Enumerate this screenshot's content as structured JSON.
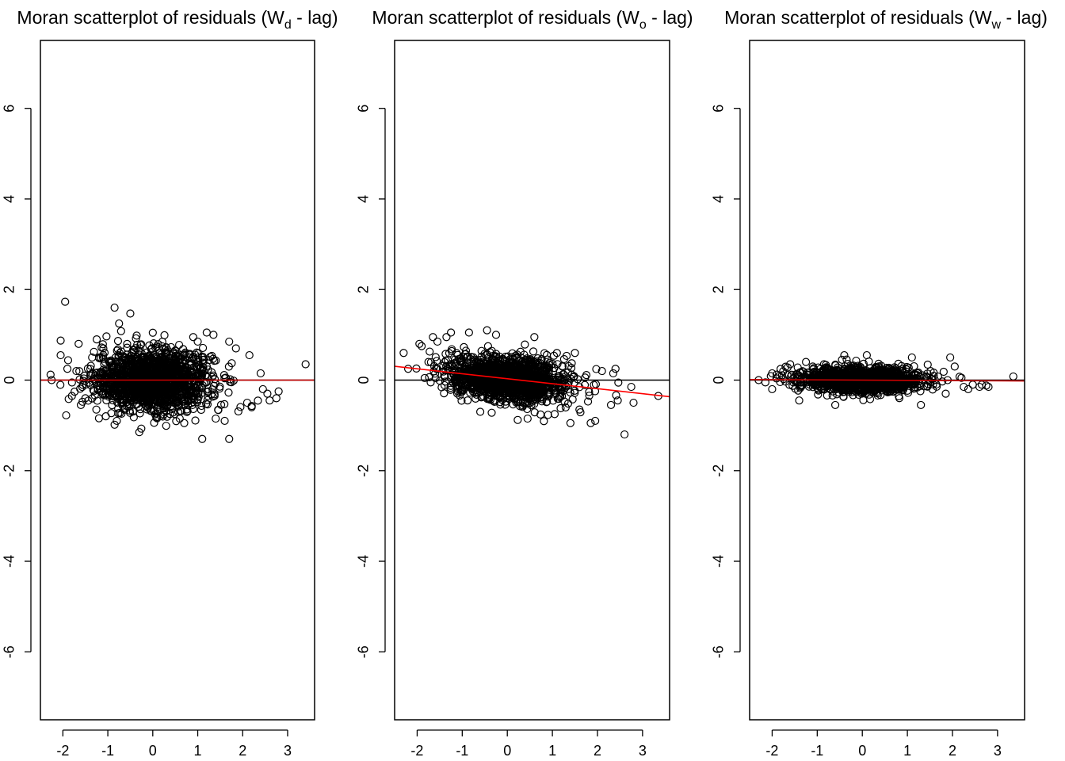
{
  "chart_data": [
    {
      "type": "scatter",
      "title": {
        "prefix": "Moran scatterplot of residuals (W",
        "subscript": "d",
        "suffix": " - lag)"
      },
      "xlim": [
        -2.5,
        3.6
      ],
      "ylim": [
        -7.5,
        7.5
      ],
      "xticks": [
        -2,
        -1,
        0,
        1,
        2,
        3
      ],
      "yticks": [
        -6,
        -4,
        -2,
        0,
        2,
        4,
        6
      ],
      "hline": 0,
      "hline_color": "#000000",
      "regression_line": {
        "intercept": 0.0,
        "slope": 0.0,
        "color": "#cc0000"
      },
      "cloud": {
        "center": [
          0.0,
          0.0
        ],
        "sd": [
          0.65,
          0.33
        ],
        "corr": 0.0,
        "count": 1600
      },
      "outliers": [
        [
          -1.95,
          1.73
        ],
        [
          -0.85,
          1.6
        ],
        [
          -0.5,
          1.47
        ],
        [
          -0.75,
          1.25
        ],
        [
          -2.25,
          0.0
        ],
        [
          -2.05,
          0.55
        ],
        [
          -1.65,
          0.8
        ],
        [
          -1.8,
          -0.35
        ],
        [
          -1.6,
          -0.55
        ],
        [
          -1.5,
          -0.4
        ],
        [
          -0.8,
          -0.9
        ],
        [
          -0.3,
          -1.15
        ],
        [
          1.1,
          -1.3
        ],
        [
          1.7,
          -1.3
        ],
        [
          1.2,
          1.05
        ],
        [
          1.35,
          1.0
        ],
        [
          1.7,
          0.85
        ],
        [
          1.85,
          0.7
        ],
        [
          2.15,
          0.55
        ],
        [
          0.7,
          -0.95
        ],
        [
          0.6,
          -0.85
        ],
        [
          1.4,
          -0.85
        ],
        [
          1.6,
          -0.9
        ],
        [
          2.2,
          -0.6
        ],
        [
          2.1,
          -0.5
        ],
        [
          2.4,
          0.15
        ],
        [
          2.45,
          -0.2
        ],
        [
          2.55,
          -0.3
        ],
        [
          2.6,
          -0.45
        ],
        [
          2.75,
          -0.4
        ],
        [
          2.8,
          -0.25
        ],
        [
          3.4,
          0.35
        ],
        [
          -1.7,
          0.2
        ],
        [
          -1.9,
          0.25
        ],
        [
          -1.35,
          0.5
        ],
        [
          -1.1,
          0.7
        ],
        [
          0.9,
          0.95
        ],
        [
          1.0,
          0.85
        ]
      ]
    },
    {
      "type": "scatter",
      "title": {
        "prefix": "Moran scatterplot of residuals (W",
        "subscript": "o",
        "suffix": " - lag)"
      },
      "xlim": [
        -2.5,
        3.6
      ],
      "ylim": [
        -7.5,
        7.5
      ],
      "xticks": [
        -2,
        -1,
        0,
        1,
        2,
        3
      ],
      "yticks": [
        -6,
        -4,
        -2,
        0,
        2,
        4,
        6
      ],
      "hline": 0,
      "hline_color": "#000000",
      "regression_line": {
        "intercept": 0.03,
        "slope": -0.11,
        "color": "#ff0000"
      },
      "cloud": {
        "center": [
          0.0,
          0.03
        ],
        "sd": [
          0.65,
          0.25
        ],
        "corr": -0.25,
        "count": 1600
      },
      "outliers": [
        [
          -2.3,
          0.6
        ],
        [
          -2.2,
          0.25
        ],
        [
          -1.95,
          0.8
        ],
        [
          -1.9,
          0.75
        ],
        [
          -1.75,
          0.4
        ],
        [
          -1.7,
          -0.05
        ],
        [
          -1.65,
          0.95
        ],
        [
          -1.55,
          0.85
        ],
        [
          -1.35,
          0.95
        ],
        [
          -1.25,
          1.05
        ],
        [
          -0.85,
          1.05
        ],
        [
          -0.45,
          1.1
        ],
        [
          -0.25,
          1.0
        ],
        [
          0.6,
          0.95
        ],
        [
          -0.6,
          -0.7
        ],
        [
          0.45,
          -0.85
        ],
        [
          1.4,
          -0.95
        ],
        [
          1.85,
          -0.95
        ],
        [
          1.95,
          -0.9
        ],
        [
          2.6,
          -1.2
        ],
        [
          2.8,
          -0.5
        ],
        [
          2.75,
          -0.15
        ],
        [
          3.35,
          -0.35
        ],
        [
          2.4,
          0.25
        ],
        [
          2.35,
          0.15
        ],
        [
          2.1,
          0.2
        ],
        [
          1.5,
          0.6
        ],
        [
          1.1,
          0.6
        ],
        [
          1.05,
          -0.75
        ],
        [
          1.6,
          -0.65
        ],
        [
          2.3,
          -0.55
        ],
        [
          2.45,
          -0.45
        ]
      ]
    },
    {
      "type": "scatter",
      "title": {
        "prefix": "Moran scatterplot of residuals (W",
        "subscript": "w",
        "suffix": " - lag)"
      },
      "xlim": [
        -2.5,
        3.6
      ],
      "ylim": [
        -7.5,
        7.5
      ],
      "xticks": [
        -2,
        -1,
        0,
        1,
        2,
        3
      ],
      "yticks": [
        -6,
        -4,
        -2,
        0,
        2,
        4,
        6
      ],
      "hline": 0,
      "hline_color": "#000000",
      "regression_line": {
        "intercept": 0.0,
        "slope": -0.005,
        "color": "#cc0000"
      },
      "cloud": {
        "center": [
          0.0,
          0.0
        ],
        "sd": [
          0.65,
          0.13
        ],
        "corr": -0.05,
        "count": 1600
      },
      "outliers": [
        [
          -2.3,
          0.0
        ],
        [
          -2.15,
          -0.05
        ],
        [
          -2.0,
          0.15
        ],
        [
          -2.0,
          -0.2
        ],
        [
          -1.9,
          0.12
        ],
        [
          -1.6,
          0.35
        ],
        [
          -1.4,
          -0.45
        ],
        [
          -1.25,
          0.4
        ],
        [
          -0.85,
          0.35
        ],
        [
          -0.6,
          -0.55
        ],
        [
          -0.45,
          0.45
        ],
        [
          -0.4,
          0.55
        ],
        [
          0.1,
          0.55
        ],
        [
          1.1,
          0.5
        ],
        [
          1.3,
          -0.55
        ],
        [
          1.95,
          0.5
        ],
        [
          2.05,
          0.3
        ],
        [
          2.2,
          0.05
        ],
        [
          2.25,
          -0.15
        ],
        [
          2.45,
          -0.1
        ],
        [
          2.6,
          -0.15
        ],
        [
          2.65,
          -0.1
        ],
        [
          2.75,
          -0.12
        ],
        [
          2.8,
          -0.15
        ],
        [
          3.35,
          0.08
        ],
        [
          1.85,
          -0.3
        ],
        [
          2.35,
          -0.2
        ],
        [
          -1.1,
          0.3
        ]
      ]
    }
  ]
}
